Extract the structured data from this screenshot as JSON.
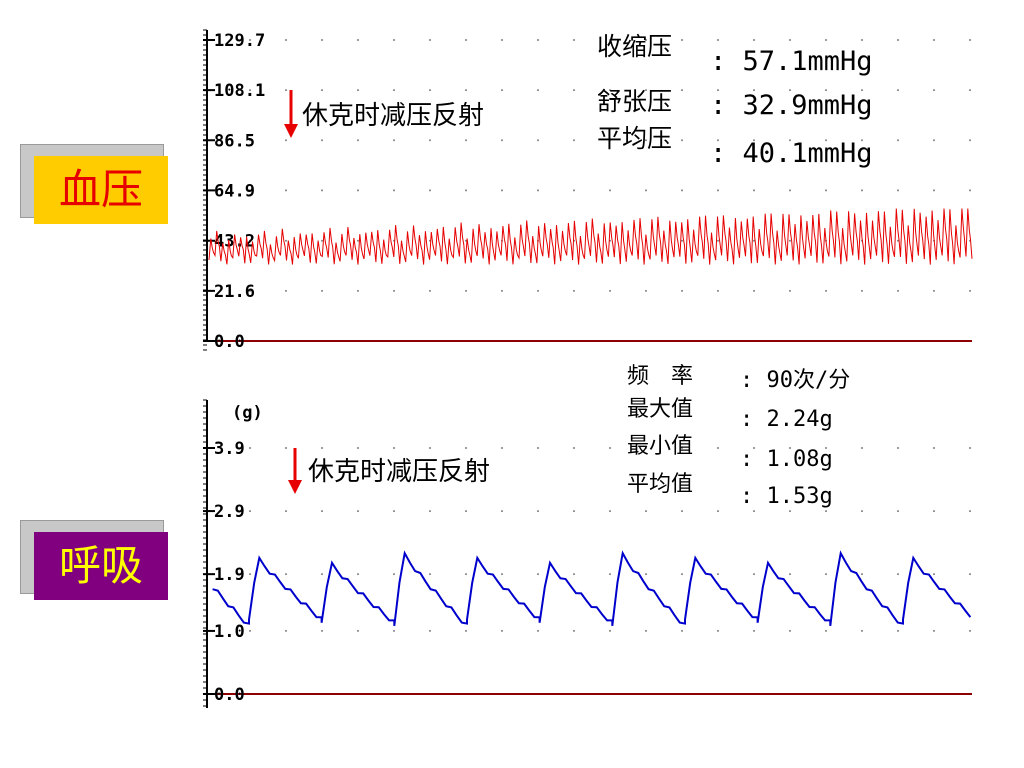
{
  "labels": {
    "bp": "血压",
    "resp": "呼吸"
  },
  "colors": {
    "bp_trace": "#e60000",
    "resp_trace": "#0000cc",
    "baseline": "#8b0000",
    "arrow": "#e60000",
    "grid_dot": "#808080"
  },
  "bp_stats": [
    {
      "name": "收缩压",
      "value": ": 57.1mmHg"
    },
    {
      "name": "舒张压",
      "value": ": 32.9mmHg"
    },
    {
      "name": "平均压",
      "value": ": 40.1mmHg"
    }
  ],
  "resp_stats": [
    {
      "name": "频　率",
      "value": ": 90次/分"
    },
    {
      "name": "最大值",
      "value": ": 2.24g"
    },
    {
      "name": "最小值",
      "value": ": 1.08g"
    },
    {
      "name": "平均值",
      "value": ": 1.53g"
    }
  ],
  "chart_data": [
    {
      "type": "line",
      "series": [
        {
          "color": "#e60000"
        }
      ],
      "y_ticks": [
        "129.7",
        "108.1",
        "86.5",
        "64.9",
        "43.2",
        "21.6",
        "0.0"
      ],
      "ylim": [
        0,
        129.7
      ],
      "grid": "dotted",
      "annotation": "休克时减压反射",
      "signal": {
        "baseline": 40.1,
        "min": 32.9,
        "max": 57.1,
        "cycles": 128,
        "amplitude_trend": "increasing"
      }
    },
    {
      "type": "line",
      "series": [
        {
          "color": "#0000cc"
        }
      ],
      "y_unit": "(g)",
      "y_ticks": [
        "3.9",
        "2.9",
        "1.9",
        "1.0",
        "0.0"
      ],
      "ylim": [
        0,
        3.9
      ],
      "grid": "dotted",
      "annotation": "休克时减压反射",
      "signal": {
        "rate_per_min": 90,
        "min": 1.08,
        "max": 2.24,
        "mean": 1.53,
        "cycles": 11
      }
    }
  ]
}
